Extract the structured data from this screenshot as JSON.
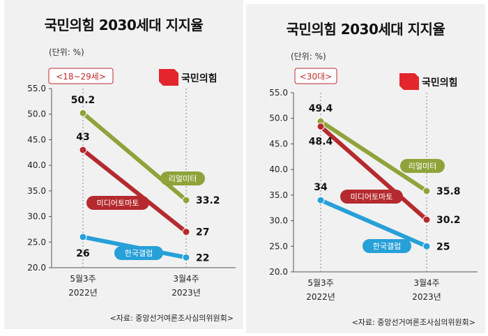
{
  "colors": {
    "real_meter": "#8ea43a",
    "media_tomato": "#b52a2e",
    "korea_gallup": "#27a0d8",
    "badge": "#c0282d",
    "logo": "#e2262b"
  },
  "chart_data": [
    {
      "type": "line",
      "title": "국민의힘 2030세대 지지율",
      "unit": "(단위: %)",
      "group_label": "<18~29세>",
      "logo_text": "국민의힘",
      "source": "<자료: 중앙선거여론조사심의위원회>",
      "x": [
        {
          "line1": "5월3주",
          "line2": "2022년"
        },
        {
          "line1": "3월4주",
          "line2": "2023년"
        }
      ],
      "ylim": [
        20,
        55
      ],
      "yticks": [
        "55.0",
        "50.0",
        "45.0",
        "40.0",
        "35.0",
        "30.0",
        "25.0",
        "20.0"
      ],
      "series": [
        {
          "name": "리얼미터",
          "values": [
            50.2,
            33.2
          ],
          "labels": [
            "50.2",
            "33.2"
          ],
          "color_key": "real_meter"
        },
        {
          "name": "미디어토마토",
          "values": [
            43,
            27
          ],
          "labels": [
            "43",
            "27"
          ],
          "color_key": "media_tomato"
        },
        {
          "name": "한국갤럽",
          "values": [
            26,
            22
          ],
          "labels": [
            "26",
            "22"
          ],
          "color_key": "korea_gallup"
        }
      ]
    },
    {
      "type": "line",
      "title": "국민의힘 2030세대 지지율",
      "unit": "(단위: %)",
      "group_label": "<30대>",
      "logo_text": "국민의힘",
      "source": "<자료: 중앙선거여론조사심의위원회>",
      "x": [
        {
          "line1": "5월3주",
          "line2": "2022년"
        },
        {
          "line1": "3월4주",
          "line2": "2023년"
        }
      ],
      "ylim": [
        20,
        55
      ],
      "yticks": [
        "55.0",
        "50.0",
        "45.0",
        "40.0",
        "35.0",
        "30.0",
        "25.0",
        "20.0"
      ],
      "series": [
        {
          "name": "리얼미터",
          "values": [
            49.4,
            35.8
          ],
          "labels": [
            "49.4",
            "35.8"
          ],
          "color_key": "real_meter"
        },
        {
          "name": "미디어토마토",
          "values": [
            48.4,
            30.2
          ],
          "labels": [
            "48.4",
            "30.2"
          ],
          "color_key": "media_tomato"
        },
        {
          "name": "한국갤럽",
          "values": [
            34,
            25
          ],
          "labels": [
            "34",
            "25"
          ],
          "color_key": "korea_gallup"
        }
      ]
    }
  ]
}
